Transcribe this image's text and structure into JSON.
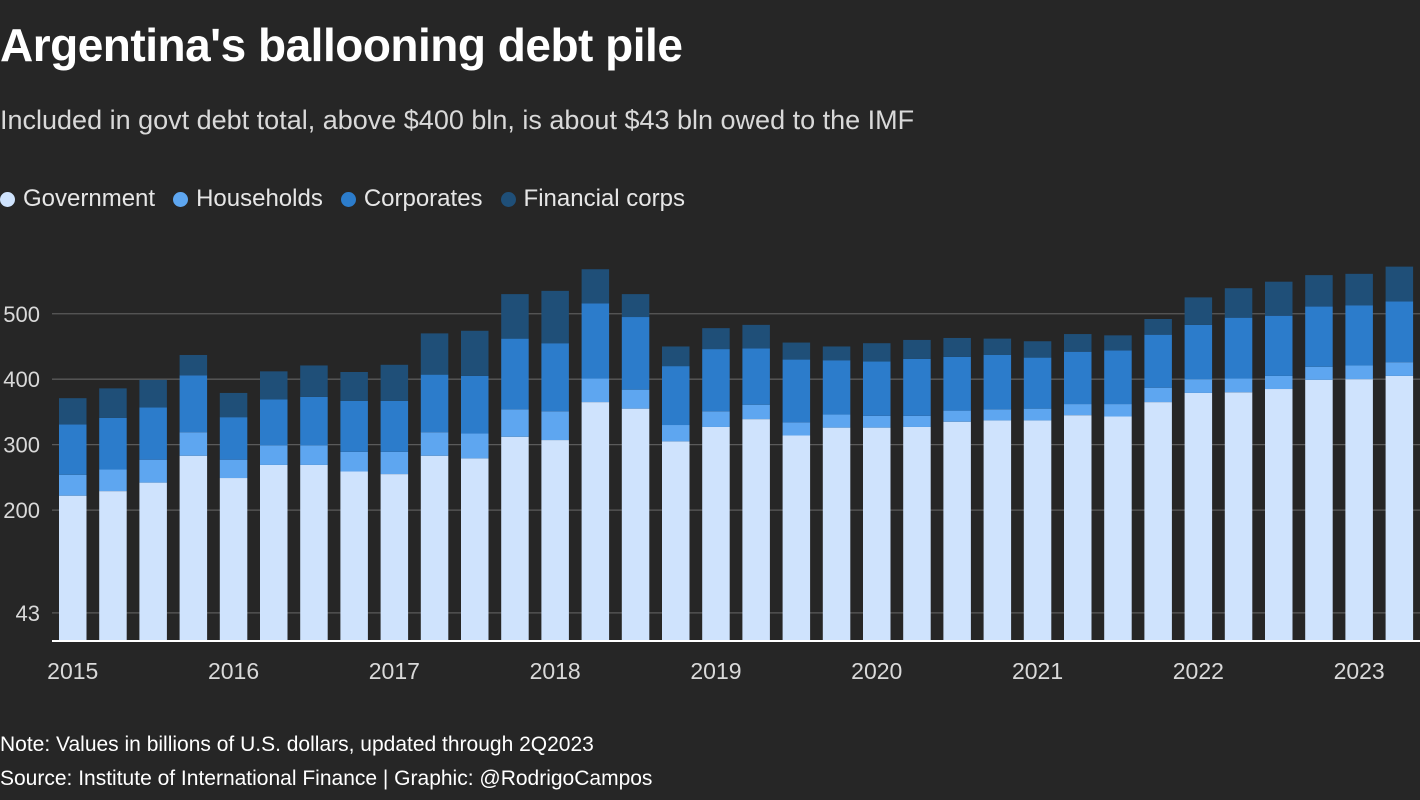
{
  "colors": {
    "government": "#cfe3fd",
    "households": "#5ea6f0",
    "corporates": "#2c7ccb",
    "financial": "#1f4f78",
    "grid": "#5a5a5a",
    "axis": "#ffffff",
    "tick_text": "#d9d9d9"
  },
  "chart_data": {
    "type": "bar",
    "stacked": true,
    "title": "Argentina's ballooning debt pile",
    "subtitle": "Included in govt debt total, above $400 bln, is about $43 bln owed to the IMF",
    "legend": [
      "Government",
      "Households",
      "Corporates",
      "Financial corps"
    ],
    "legend_position": "top-left",
    "ylim": [
      0,
      575
    ],
    "yticks": [
      43,
      200,
      300,
      400,
      500
    ],
    "ytick_labels": [
      "43",
      "200",
      "300",
      "400",
      "500"
    ],
    "grid": true,
    "xtick_labels": [
      {
        "label": "2015",
        "index": 0
      },
      {
        "label": "2016",
        "index": 4
      },
      {
        "label": "2017",
        "index": 8
      },
      {
        "label": "2018",
        "index": 12
      },
      {
        "label": "2019",
        "index": 16
      },
      {
        "label": "2020",
        "index": 20
      },
      {
        "label": "2021",
        "index": 24
      },
      {
        "label": "2022",
        "index": 28
      },
      {
        "label": "2023",
        "index": 32
      }
    ],
    "categories": [
      "1Q2015",
      "2Q2015",
      "3Q2015",
      "4Q2015",
      "1Q2016",
      "2Q2016",
      "3Q2016",
      "4Q2016",
      "1Q2017",
      "2Q2017",
      "3Q2017",
      "4Q2017",
      "1Q2018",
      "2Q2018",
      "3Q2018",
      "4Q2018",
      "1Q2019",
      "2Q2019",
      "3Q2019",
      "4Q2019",
      "1Q2020",
      "2Q2020",
      "3Q2020",
      "4Q2020",
      "1Q2021",
      "2Q2021",
      "3Q2021",
      "4Q2021",
      "1Q2022",
      "2Q2022",
      "3Q2022",
      "4Q2022",
      "1Q2023",
      "2Q2023"
    ],
    "series": [
      {
        "name": "Government",
        "color_key": "government",
        "values": [
          222,
          229,
          242,
          283,
          249,
          269,
          269,
          259,
          255,
          283,
          279,
          312,
          307,
          365,
          355,
          305,
          327,
          339,
          314,
          326,
          326,
          327,
          335,
          337,
          337,
          345,
          343,
          365,
          379,
          380,
          385,
          399,
          400,
          405
        ]
      },
      {
        "name": "Households",
        "color_key": "households",
        "values": [
          32,
          33,
          35,
          36,
          28,
          30,
          30,
          30,
          34,
          36,
          38,
          42,
          44,
          36,
          29,
          25,
          24,
          22,
          20,
          20,
          18,
          17,
          17,
          17,
          18,
          17,
          19,
          22,
          21,
          21,
          20,
          20,
          21,
          21
        ]
      },
      {
        "name": "Corporates",
        "color_key": "corporates",
        "values": [
          77,
          79,
          80,
          87,
          65,
          70,
          74,
          78,
          78,
          88,
          88,
          108,
          104,
          115,
          111,
          90,
          95,
          86,
          96,
          83,
          83,
          87,
          82,
          83,
          78,
          80,
          82,
          81,
          83,
          93,
          92,
          92,
          92,
          93
        ]
      },
      {
        "name": "Financial corps",
        "color_key": "financial",
        "values": [
          40,
          45,
          42,
          31,
          37,
          43,
          48,
          44,
          55,
          63,
          69,
          68,
          80,
          52,
          35,
          30,
          32,
          36,
          26,
          21,
          28,
          29,
          29,
          25,
          25,
          27,
          23,
          24,
          42,
          45,
          52,
          48,
          48,
          53
        ]
      }
    ]
  },
  "footer": {
    "note": "Note: Values in billions of U.S. dollars, updated through 2Q2023",
    "source": "Source: Institute of International Finance | Graphic: @RodrigoCampos"
  }
}
